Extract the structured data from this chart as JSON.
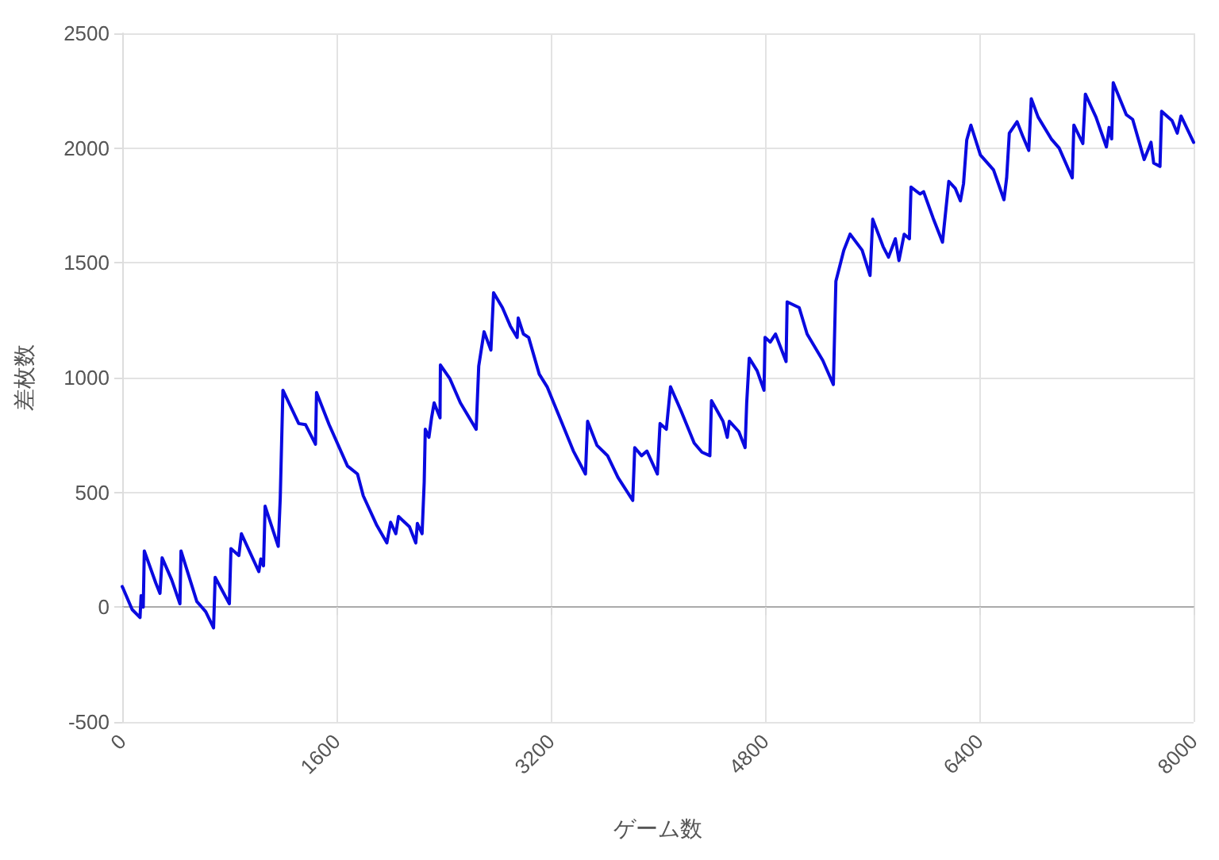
{
  "chart_data": {
    "type": "line",
    "xlabel": "ゲーム数",
    "ylabel": "差枚数",
    "xlim": [
      0,
      8000
    ],
    "xticks": [
      0,
      1600,
      3200,
      4800,
      6400,
      8000
    ],
    "ylim": [
      -500,
      2500
    ],
    "yticks": [
      -500,
      0,
      500,
      1000,
      1500,
      2000,
      2500
    ],
    "grid": true,
    "marker": "none",
    "line_style": "solid",
    "series": [
      {
        "color": "#0a0ae0",
        "x": [
          0,
          8,
          74,
          133,
          141,
          157,
          165,
          251,
          282,
          298,
          369,
          431,
          439,
          557,
          624,
          682,
          694,
          800,
          812,
          871,
          890,
          957,
          1020,
          1035,
          1055,
          1067,
          1165,
          1180,
          1200,
          1318,
          1369,
          1443,
          1451,
          1545,
          1682,
          1757,
          1800,
          1898,
          1976,
          2004,
          2043,
          2063,
          2145,
          2192,
          2204,
          2239,
          2255,
          2263,
          2290,
          2310,
          2329,
          2373,
          2376,
          2447,
          2525,
          2643,
          2662,
          2702,
          2753,
          2773,
          2839,
          2898,
          2949,
          2957,
          2996,
          3035,
          3114,
          3173,
          3271,
          3369,
          3459,
          3475,
          3545,
          3624,
          3702,
          3812,
          3827,
          3878,
          3918,
          3996,
          4016,
          4063,
          4094,
          4173,
          4271,
          4329,
          4388,
          4400,
          4486,
          4518,
          4533,
          4604,
          4651,
          4663,
          4682,
          4741,
          4792,
          4800,
          4839,
          4878,
          4957,
          4965,
          5055,
          5114,
          5231,
          5310,
          5329,
          5388,
          5435,
          5525,
          5584,
          5604,
          5682,
          5722,
          5773,
          5800,
          5839,
          5878,
          5890,
          5957,
          5984,
          6055,
          6125,
          6172,
          6220,
          6259,
          6282,
          6306,
          6337,
          6408,
          6506,
          6584,
          6604,
          6624,
          6682,
          6722,
          6769,
          6788,
          6839,
          6937,
          6996,
          7094,
          7106,
          7173,
          7192,
          7271,
          7349,
          7369,
          7388,
          7400,
          7498,
          7545,
          7631,
          7682,
          7702,
          7749,
          7761,
          7839,
          7878,
          7906,
          8000
        ],
        "values": [
          90,
          80,
          -10,
          -45,
          50,
          0,
          245,
          105,
          60,
          215,
          120,
          15,
          245,
          25,
          -20,
          -90,
          130,
          15,
          255,
          225,
          320,
          235,
          155,
          210,
          180,
          440,
          265,
          475,
          945,
          800,
          795,
          710,
          935,
          795,
          615,
          580,
          485,
          360,
          280,
          370,
          320,
          395,
          350,
          280,
          365,
          320,
          545,
          775,
          740,
          825,
          890,
          825,
          1055,
          995,
          890,
          775,
          1050,
          1200,
          1120,
          1370,
          1305,
          1225,
          1175,
          1260,
          1190,
          1175,
          1015,
          960,
          820,
          680,
          580,
          810,
          705,
          660,
          565,
          465,
          695,
          660,
          680,
          580,
          800,
          775,
          960,
          855,
          715,
          675,
          660,
          900,
          810,
          740,
          810,
          765,
          695,
          890,
          1085,
          1030,
          945,
          1175,
          1155,
          1190,
          1070,
          1330,
          1305,
          1190,
          1075,
          970,
          1420,
          1555,
          1625,
          1555,
          1445,
          1690,
          1570,
          1525,
          1605,
          1510,
          1625,
          1605,
          1830,
          1800,
          1810,
          1695,
          1590,
          1855,
          1825,
          1770,
          1845,
          2035,
          2100,
          1970,
          1905,
          1775,
          1870,
          2065,
          2115,
          2055,
          1990,
          2215,
          2135,
          2040,
          2000,
          1870,
          2100,
          2020,
          2235,
          2135,
          2005,
          2090,
          2040,
          2285,
          2145,
          2125,
          1950,
          2025,
          1935,
          1920,
          2160,
          2120,
          2065,
          2140,
          2025
        ]
      }
    ]
  }
}
